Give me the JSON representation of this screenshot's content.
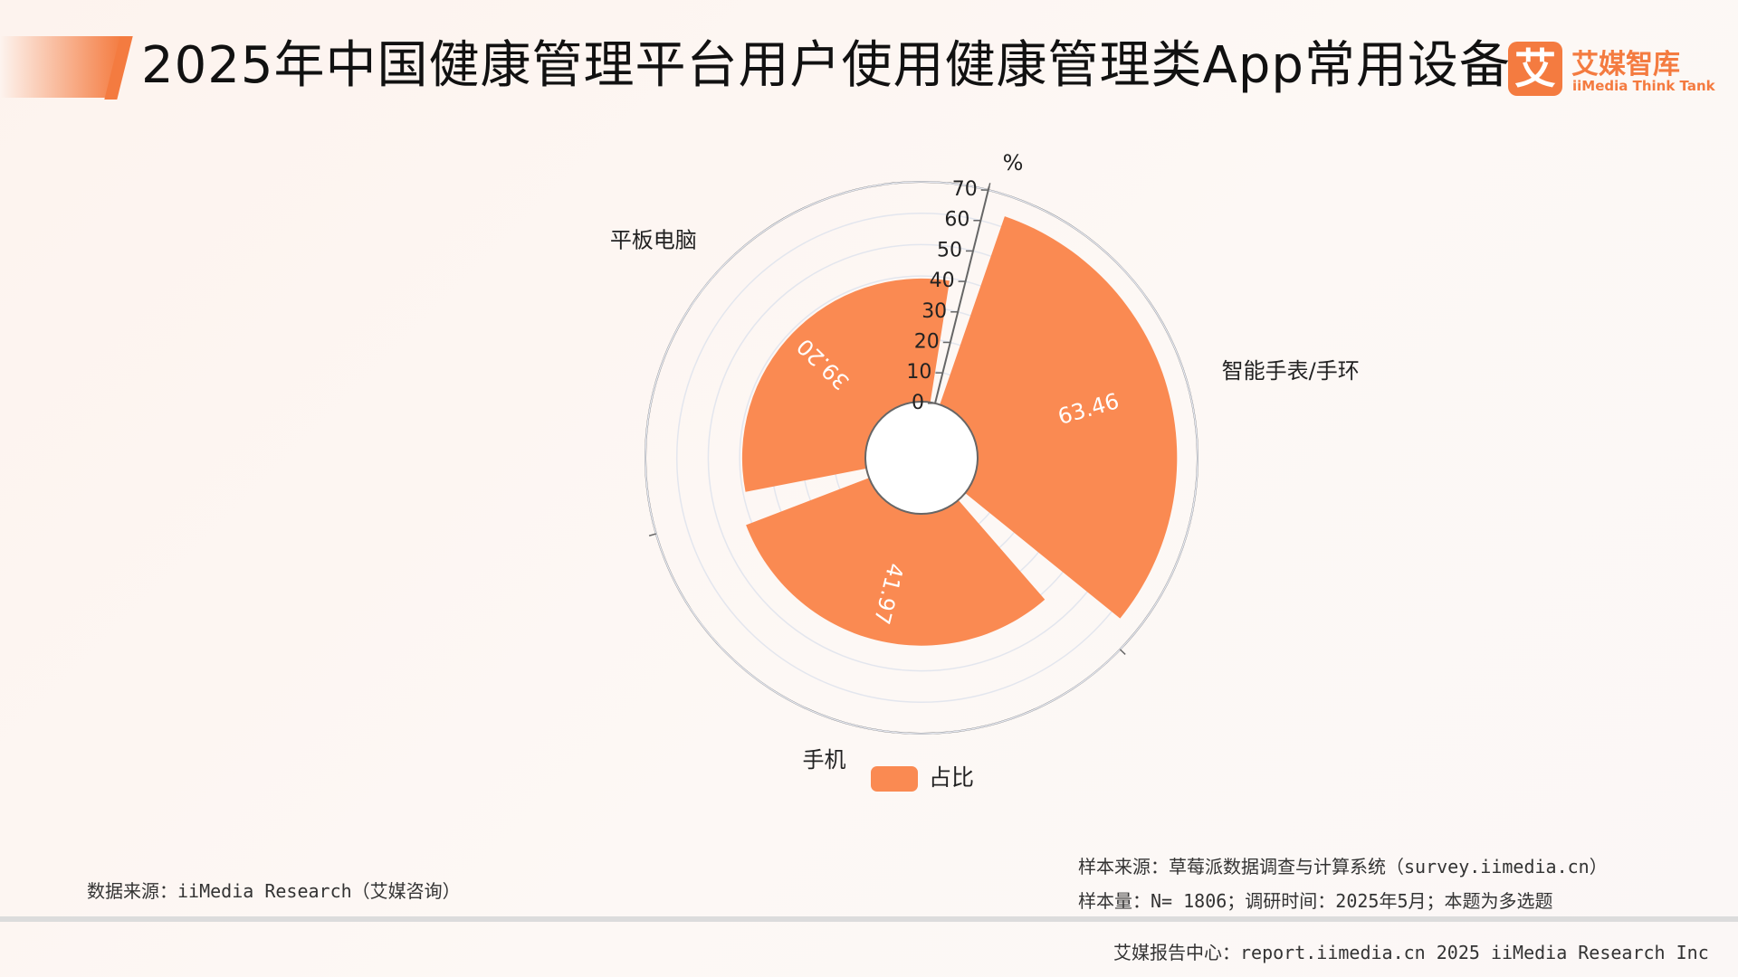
{
  "header": {
    "title": "2025年中国健康管理平台用户使用健康管理类App常用设备",
    "logo_mark": "艾",
    "logo_name": "艾媒智库",
    "logo_sub": "iiMedia Think Tank"
  },
  "chart_data": {
    "type": "polar-bar",
    "categories": [
      "智能手表/手环",
      "手机",
      "平板电脑"
    ],
    "series": [
      {
        "name": "占比",
        "values": [
          63.46,
          41.97,
          39.2
        ]
      }
    ],
    "value_labels": [
      "63.46",
      "41.97",
      "39.20"
    ],
    "radial_ticks": [
      "0",
      "10",
      "20",
      "30",
      "40",
      "50",
      "60",
      "70"
    ],
    "radial_range": [
      0,
      70
    ],
    "unit": "%",
    "legend_label": "占比",
    "legend_position": "bottom",
    "grid": true,
    "bar_color": "#fa8a52"
  },
  "footer": {
    "data_source": "数据来源：iiMedia Research（艾媒咨询）",
    "sample_source": "样本来源：草莓派数据调查与计算系统（survey.iimedia.cn）",
    "sample_size": "样本量：N= 1806；调研时间：2025年5月；本题为多选题",
    "report_center": "艾媒报告中心：report.iimedia.cn   2025 iiMedia Research Inc"
  }
}
